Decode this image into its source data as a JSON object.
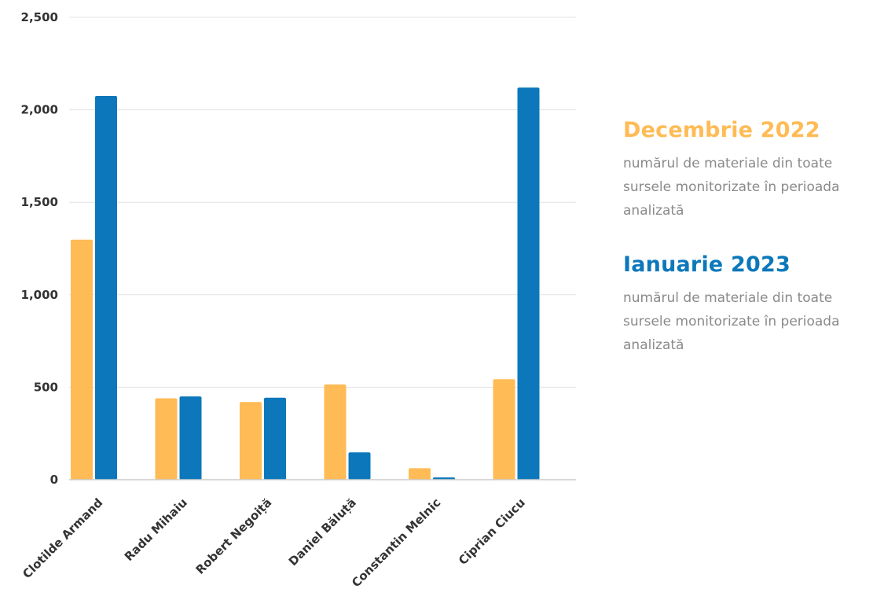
{
  "chart_data": {
    "type": "bar",
    "categories": [
      "Clotilde Armand",
      "Radu Mihaiu",
      "Robert Negoiță",
      "Daniel Băluță",
      "Constantin Melnic",
      "Ciprian Ciucu"
    ],
    "series": [
      {
        "name": "Decembrie 2022",
        "values": [
          1298,
          440,
          420,
          515,
          62,
          543
        ],
        "color": "#ffbb55"
      },
      {
        "name": "Ianuarie 2023",
        "values": [
          2075,
          450,
          443,
          148,
          12,
          2120
        ],
        "color": "#0c78bb"
      }
    ],
    "yticks": [
      "0",
      "500",
      "1,000",
      "1,500",
      "2,000",
      "2,500"
    ],
    "ylim": [
      0,
      2500
    ],
    "grid": true,
    "legend_position": "right"
  },
  "legend": [
    {
      "title": "Decembrie 2022",
      "description": "numărul de materiale din toate sursele monitorizate în perioada analizată",
      "color": "#ffbb55"
    },
    {
      "title": "Ianuarie 2023",
      "description": "numărul de materiale din toate sursele monitorizate în perioada analizată",
      "color": "#0c78bb"
    }
  ]
}
